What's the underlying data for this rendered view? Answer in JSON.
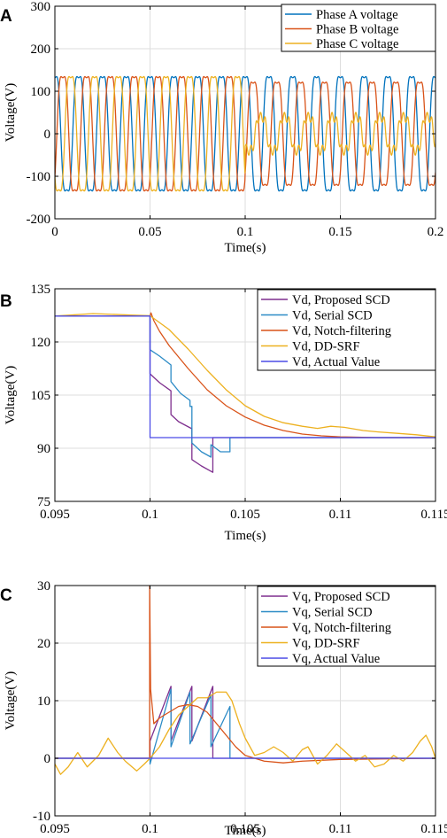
{
  "colors": {
    "blue": "#0072BD",
    "orange": "#D95319",
    "yellow": "#EDB120",
    "purple": "#7E2F8E",
    "cyan_blue": "#2C8BC6",
    "actual_blue": "#4B4BE6",
    "grid": "#DEDEDE"
  },
  "chart_data": [
    {
      "panel": "A",
      "type": "line",
      "xlabel": "Time(s)",
      "ylabel": "Voltage(V)",
      "xlim": [
        0,
        0.2
      ],
      "ylim": [
        -200,
        300
      ],
      "xticks": [
        0,
        0.05,
        0.1,
        0.15,
        0.2
      ],
      "xtick_labels": [
        "0",
        "0.05",
        "0.1",
        "0.15",
        "0.2"
      ],
      "yticks": [
        -200,
        -100,
        0,
        100,
        200,
        300
      ],
      "ytick_labels": [
        "-200",
        "-100",
        "0",
        "100",
        "200",
        "300"
      ],
      "grid": true,
      "legend": "top-right",
      "series": [
        {
          "name": "Phase A voltage",
          "color": "#0072BD",
          "frequency_hz": 80,
          "amplitude": 155,
          "phase_deg": 90,
          "amplitude_after_0_1s": 155
        },
        {
          "name": "Phase B voltage",
          "color": "#D95319",
          "frequency_hz": 80,
          "amplitude": 155,
          "phase_deg": -30,
          "amplitude_after_0_1s": 140
        },
        {
          "name": "Phase C voltage",
          "color": "#EDB120",
          "frequency_hz": 80,
          "amplitude": 155,
          "phase_deg": 210,
          "amplitude_after_0_1s": 45
        }
      ],
      "voltage_sag_time": 0.1
    },
    {
      "panel": "B",
      "type": "line",
      "xlabel": "Time(s)",
      "ylabel": "Voltage(V)",
      "xlim": [
        0.095,
        0.115
      ],
      "ylim": [
        75,
        135
      ],
      "xticks": [
        0.095,
        0.1,
        0.105,
        0.11,
        0.115
      ],
      "xtick_labels": [
        "0.095",
        "0.1",
        "0.105",
        "0.11",
        "0.115"
      ],
      "yticks": [
        75,
        90,
        105,
        120,
        135
      ],
      "ytick_labels": [
        "75",
        "90",
        "105",
        "120",
        "135"
      ],
      "grid": true,
      "legend": "top-right",
      "series": [
        {
          "name": "Vd, Proposed SCD",
          "color": "#7E2F8E",
          "points": [
            [
              0.095,
              127.3
            ],
            [
              0.1,
              127.3
            ],
            [
              0.1,
              111
            ],
            [
              0.1005,
              108.5
            ],
            [
              0.1011,
              106.2
            ],
            [
              0.1011,
              99.5
            ],
            [
              0.1015,
              97.5
            ],
            [
              0.1022,
              95.5
            ],
            [
              0.1022,
              86.8
            ],
            [
              0.1027,
              85
            ],
            [
              0.1033,
              83.2
            ],
            [
              0.1033,
              93
            ],
            [
              0.115,
              93
            ]
          ]
        },
        {
          "name": "Vd, Serial SCD",
          "color": "#2C8BC6",
          "points": [
            [
              0.095,
              127.3
            ],
            [
              0.1,
              127.3
            ],
            [
              0.1,
              117.8
            ],
            [
              0.1005,
              116
            ],
            [
              0.1011,
              113.5
            ],
            [
              0.1011,
              108.8
            ],
            [
              0.1016,
              105.5
            ],
            [
              0.1021,
              103.5
            ],
            [
              0.1021,
              101.8
            ],
            [
              0.1022,
              101.8
            ],
            [
              0.1022,
              91.5
            ],
            [
              0.1027,
              89
            ],
            [
              0.1032,
              87.5
            ],
            [
              0.1032,
              91
            ],
            [
              0.1037,
              89
            ],
            [
              0.1042,
              89
            ],
            [
              0.1042,
              93
            ],
            [
              0.115,
              93
            ]
          ]
        },
        {
          "name": "Vd, Notch-filtering",
          "color": "#D95319",
          "points": [
            [
              0.095,
              127.3
            ],
            [
              0.1,
              127.3
            ],
            [
              0.10005,
              128.2
            ],
            [
              0.1002,
              126
            ],
            [
              0.1005,
              123
            ],
            [
              0.101,
              119
            ],
            [
              0.102,
              112.5
            ],
            [
              0.103,
              106.5
            ],
            [
              0.104,
              102
            ],
            [
              0.105,
              98.8
            ],
            [
              0.106,
              96.5
            ],
            [
              0.107,
              95
            ],
            [
              0.108,
              94
            ],
            [
              0.109,
              93.5
            ],
            [
              0.11,
              93.2
            ],
            [
              0.112,
              93
            ],
            [
              0.115,
              93
            ]
          ]
        },
        {
          "name": "Vd, DD-SRF",
          "color": "#EDB120",
          "points": [
            [
              0.095,
              127.3
            ],
            [
              0.097,
              128
            ],
            [
              0.099,
              127.6
            ],
            [
              0.1,
              127.4
            ],
            [
              0.101,
              123.5
            ],
            [
              0.102,
              118
            ],
            [
              0.103,
              112
            ],
            [
              0.104,
              106.5
            ],
            [
              0.105,
              102
            ],
            [
              0.106,
              99
            ],
            [
              0.107,
              97.2
            ],
            [
              0.108,
              96.2
            ],
            [
              0.1088,
              95.6
            ],
            [
              0.1095,
              96.2
            ],
            [
              0.1102,
              95.9
            ],
            [
              0.1112,
              95
            ],
            [
              0.112,
              94.6
            ],
            [
              0.113,
              94.2
            ],
            [
              0.114,
              93.8
            ],
            [
              0.115,
              93.2
            ]
          ]
        },
        {
          "name": "Vd, Actual Value",
          "color": "#4B4BE6",
          "points": [
            [
              0.095,
              127.3
            ],
            [
              0.1,
              127.3
            ],
            [
              0.1,
              93
            ],
            [
              0.115,
              93
            ]
          ]
        }
      ]
    },
    {
      "panel": "C",
      "type": "line",
      "xlabel": "Time(s)",
      "ylabel": "Voltage(V)",
      "xlim": [
        0.095,
        0.115
      ],
      "ylim": [
        -10,
        30
      ],
      "xticks": [
        0.095,
        0.1,
        0.105,
        0.11,
        0.115
      ],
      "xtick_labels": [
        "0.095",
        "0.1",
        "0.105",
        "0.11",
        "0.115"
      ],
      "yticks": [
        -10,
        0,
        10,
        20,
        30
      ],
      "ytick_labels": [
        "-10",
        "0",
        "10",
        "20",
        "30"
      ],
      "grid": true,
      "legend": "top-right",
      "series": [
        {
          "name": "Vq, Proposed SCD",
          "color": "#7E2F8E",
          "points": [
            [
              0.095,
              0
            ],
            [
              0.1,
              0
            ],
            [
              0.1,
              3
            ],
            [
              0.1011,
              12.5
            ],
            [
              0.1011,
              3
            ],
            [
              0.1022,
              12.5
            ],
            [
              0.1022,
              3
            ],
            [
              0.1033,
              12.5
            ],
            [
              0.1033,
              0
            ],
            [
              0.115,
              0
            ]
          ]
        },
        {
          "name": "Vq, Serial SCD",
          "color": "#2C8BC6",
          "points": [
            [
              0.095,
              0
            ],
            [
              0.1,
              0
            ],
            [
              0.1,
              -1
            ],
            [
              0.1011,
              12
            ],
            [
              0.1011,
              2
            ],
            [
              0.1021,
              11.5
            ],
            [
              0.1021,
              2.5
            ],
            [
              0.1032,
              11
            ],
            [
              0.1032,
              2
            ],
            [
              0.1042,
              9
            ],
            [
              0.1042,
              0
            ],
            [
              0.115,
              0
            ]
          ]
        },
        {
          "name": "Vq, Notch-filtering",
          "color": "#D95319",
          "points": [
            [
              0.095,
              0
            ],
            [
              0.09998,
              0
            ],
            [
              0.09998,
              30
            ],
            [
              0.10003,
              12
            ],
            [
              0.1002,
              6
            ],
            [
              0.1005,
              7
            ],
            [
              0.101,
              8
            ],
            [
              0.1015,
              9
            ],
            [
              0.102,
              9.3
            ],
            [
              0.1025,
              9
            ],
            [
              0.103,
              8
            ],
            [
              0.1035,
              6
            ],
            [
              0.104,
              4
            ],
            [
              0.1045,
              2
            ],
            [
              0.105,
              0.5
            ],
            [
              0.106,
              -0.5
            ],
            [
              0.107,
              -0.8
            ],
            [
              0.108,
              -0.5
            ],
            [
              0.11,
              -0.2
            ],
            [
              0.115,
              0
            ]
          ]
        },
        {
          "name": "Vq, DD-SRF",
          "color": "#EDB120",
          "points": [
            [
              0.095,
              -1
            ],
            [
              0.0953,
              -2.8
            ],
            [
              0.0957,
              -1.5
            ],
            [
              0.0962,
              1
            ],
            [
              0.0967,
              -1.5
            ],
            [
              0.0973,
              0.5
            ],
            [
              0.0978,
              3.5
            ],
            [
              0.0983,
              1
            ],
            [
              0.0987,
              -0.5
            ],
            [
              0.0993,
              -2.2
            ],
            [
              0.0997,
              -1
            ],
            [
              0.1,
              0
            ],
            [
              0.1005,
              2
            ],
            [
              0.101,
              5
            ],
            [
              0.1015,
              7.5
            ],
            [
              0.102,
              9
            ],
            [
              0.1025,
              10.5
            ],
            [
              0.103,
              10.5
            ],
            [
              0.1035,
              11.5
            ],
            [
              0.104,
              11.5
            ],
            [
              0.1043,
              10
            ],
            [
              0.1047,
              6
            ],
            [
              0.105,
              3.5
            ],
            [
              0.1055,
              0.5
            ],
            [
              0.106,
              1
            ],
            [
              0.1065,
              2
            ],
            [
              0.107,
              1
            ],
            [
              0.1075,
              -0.5
            ],
            [
              0.108,
              1.5
            ],
            [
              0.1083,
              2
            ],
            [
              0.1088,
              -1
            ],
            [
              0.1093,
              0.5
            ],
            [
              0.1098,
              2.5
            ],
            [
              0.1103,
              1
            ],
            [
              0.1108,
              -0.5
            ],
            [
              0.1113,
              0.5
            ],
            [
              0.1118,
              -1.5
            ],
            [
              0.1123,
              -1
            ],
            [
              0.1128,
              0.5
            ],
            [
              0.1133,
              -0.5
            ],
            [
              0.1138,
              1
            ],
            [
              0.1142,
              3
            ],
            [
              0.1145,
              4
            ],
            [
              0.1148,
              2
            ],
            [
              0.115,
              0
            ]
          ]
        },
        {
          "name": "Vq, Actual Value",
          "color": "#4B4BE6",
          "points": [
            [
              0.095,
              0
            ],
            [
              0.115,
              0
            ]
          ]
        }
      ]
    }
  ]
}
